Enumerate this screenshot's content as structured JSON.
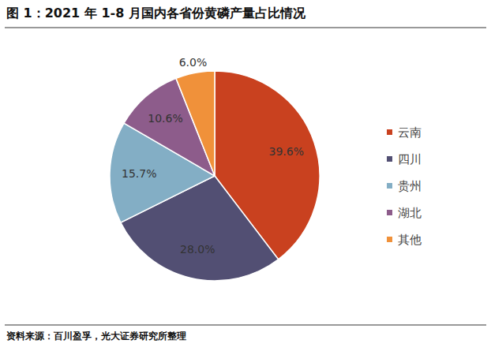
{
  "chart_data": {
    "type": "pie",
    "title": "图 1：2021 年 1-8 月国内各省份黄磷产量占比情况",
    "source": "资料来源：百川盈孚，光大证券研究所整理",
    "categories": [
      "云南",
      "四川",
      "贵州",
      "湖北",
      "其他"
    ],
    "values": [
      39.6,
      28.0,
      15.7,
      10.6,
      6.0
    ],
    "value_labels": [
      "39.6%",
      "28.0%",
      "15.7%",
      "10.6%",
      "6.0%"
    ],
    "colors": [
      "#c9411f",
      "#524f73",
      "#83aec5",
      "#8d5c8b",
      "#f0913a"
    ],
    "data_labels": true,
    "legend": "right"
  }
}
